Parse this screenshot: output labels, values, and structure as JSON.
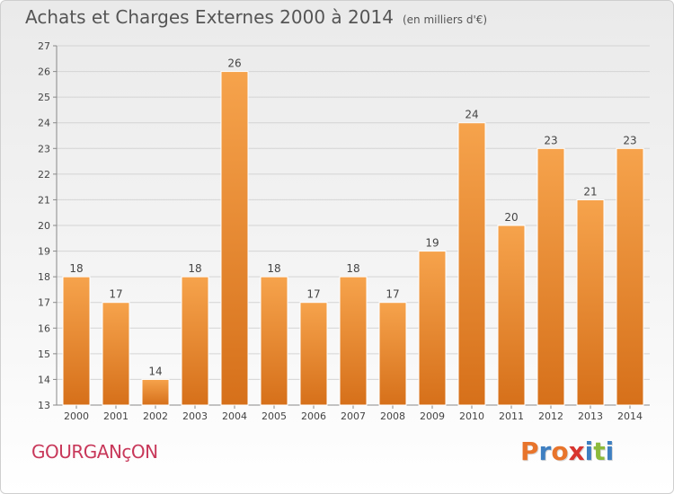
{
  "header": {
    "title": "Achats et Charges Externes 2000 à 2014",
    "unit": "(en milliers d'€)"
  },
  "footer": {
    "city": "GOURGANçON",
    "brand": "Proxiti"
  },
  "colors": {
    "bar_top": "#f6a34c",
    "bar_bottom": "#d6701a",
    "city": "#c8385a",
    "logo_letters": [
      "#e8742b",
      "#3e7fc1",
      "#e8742b",
      "#d8352f",
      "#3e7fc1",
      "#8cba3c",
      "#3e7fc1"
    ]
  },
  "chart_data": {
    "type": "bar",
    "title": "Achats et Charges Externes 2000 à 2014",
    "subtitle": "(en milliers d'€)",
    "categories": [
      "2000",
      "2001",
      "2002",
      "2003",
      "2004",
      "2005",
      "2006",
      "2007",
      "2008",
      "2009",
      "2010",
      "2011",
      "2012",
      "2013",
      "2014"
    ],
    "values": [
      18,
      17,
      14,
      18,
      26,
      18,
      17,
      18,
      17,
      19,
      24,
      20,
      23,
      21,
      23
    ],
    "ylim": [
      13,
      27
    ],
    "yticks": [
      13,
      14,
      15,
      16,
      17,
      18,
      19,
      20,
      21,
      22,
      23,
      24,
      25,
      26,
      27
    ],
    "grid": true,
    "legend": "none"
  }
}
